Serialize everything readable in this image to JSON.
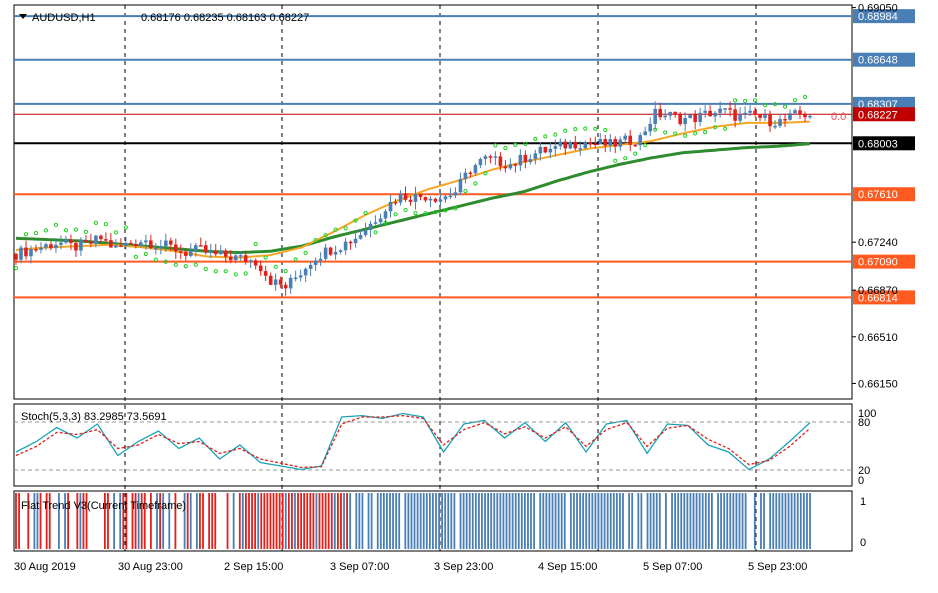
{
  "header": {
    "symbol": "AUDUSD,H1",
    "ohlc": "0.68176 0.68235 0.68163 0.68227"
  },
  "main_scale": {
    "ticks": [
      "0.69050",
      "0.67240",
      "0.66870",
      "0.66510",
      "0.66150"
    ],
    "zero_marker": "0.0"
  },
  "levels": [
    {
      "label": "0.68984",
      "price": 0.68984,
      "color": "#4a7fb5",
      "width": 2
    },
    {
      "label": "0.68648",
      "price": 0.68648,
      "color": "#4a7fb5",
      "width": 2
    },
    {
      "label": "0.68307",
      "price": 0.68307,
      "color": "#4a7fb5",
      "width": 2
    },
    {
      "label": "0.68227",
      "price": 0.68227,
      "color": "#c00000",
      "width": 1
    },
    {
      "label": "0.68003",
      "price": 0.68003,
      "color": "#000000",
      "width": 2
    },
    {
      "label": "0.67610",
      "price": 0.6761,
      "color": "#ff5a1f",
      "width": 2
    },
    {
      "label": "0.67090",
      "price": 0.6709,
      "color": "#ff5a1f",
      "width": 2
    },
    {
      "label": "0.66814",
      "price": 0.66814,
      "color": "#ff5a1f",
      "width": 2
    }
  ],
  "stoch": {
    "label": "Stoch(5,3,3) 83.2985 73.5691",
    "ticks": [
      "100",
      "80",
      "20",
      "0"
    ]
  },
  "flat_trend": {
    "label": "Flat Trend V3(Current Timeframe)",
    "ticks": [
      "1",
      "0"
    ]
  },
  "x_axis": {
    "labels": [
      "30 Aug 2019",
      "30 Aug 23:00",
      "2 Sep 15:00",
      "3 Sep 07:00",
      "3 Sep 23:00",
      "4 Sep 15:00",
      "5 Sep 07:00",
      "5 Sep 23:00"
    ]
  },
  "colors": {
    "bull": "#4a7fb5",
    "bear": "#e0201b",
    "ma_fast": "#f5a623",
    "ma_slow": "#2e8b2e",
    "sar": "#22cc22",
    "stoch_main": "#1aa3b8",
    "stoch_signal": "#e0201b"
  },
  "chart_data": {
    "type": "candlestick",
    "symbol": "AUDUSD",
    "timeframe": "H1",
    "ylim": [
      0.6603,
      0.6907
    ],
    "close_path": [
      0.6715,
      0.6718,
      0.6721,
      0.6724,
      0.672,
      0.6722,
      0.6727,
      0.6719,
      0.6723,
      0.6726,
      0.6722,
      0.672,
      0.6716,
      0.6718,
      0.6714,
      0.6713,
      0.6711,
      0.6709,
      0.6694,
      0.6689,
      0.67,
      0.6712,
      0.6718,
      0.6722,
      0.6728,
      0.6738,
      0.675,
      0.676,
      0.6759,
      0.676,
      0.6758,
      0.6763,
      0.678,
      0.6788,
      0.6786,
      0.6784,
      0.679,
      0.6794,
      0.6796,
      0.68,
      0.6801,
      0.68,
      0.6799,
      0.6802,
      0.6804,
      0.6823,
      0.6822,
      0.6819,
      0.682,
      0.6824,
      0.6825,
      0.682,
      0.6822,
      0.6818,
      0.6817,
      0.6822,
      0.6823
    ],
    "ma_fast_path": [
      0.6718,
      0.672,
      0.6721,
      0.6722,
      0.672,
      0.6717,
      0.6713,
      0.6712,
      0.6714,
      0.672,
      0.6732,
      0.6745,
      0.6756,
      0.6765,
      0.6772,
      0.678,
      0.6786,
      0.6791,
      0.6796,
      0.6799,
      0.6802,
      0.6808,
      0.6813,
      0.6816,
      0.6816,
      0.6817
    ],
    "ma_slow_path": [
      0.6727,
      0.6726,
      0.6725,
      0.6723,
      0.6721,
      0.6719,
      0.6717,
      0.6716,
      0.6717,
      0.6721,
      0.6728,
      0.6734,
      0.674,
      0.6746,
      0.6752,
      0.6758,
      0.6763,
      0.6771,
      0.6778,
      0.6784,
      0.6789,
      0.6793,
      0.6795,
      0.6797,
      0.6798,
      0.68
    ],
    "stoch_main_path": [
      40,
      55,
      75,
      60,
      80,
      35,
      55,
      70,
      45,
      60,
      30,
      50,
      25,
      20,
      15,
      20,
      90,
      92,
      88,
      95,
      90,
      40,
      80,
      85,
      60,
      82,
      55,
      82,
      40,
      80,
      85,
      38,
      80,
      78,
      50,
      40,
      15,
      30,
      55,
      82
    ],
    "stoch_signal_path": [
      35,
      48,
      68,
      65,
      72,
      45,
      50,
      65,
      52,
      55,
      38,
      45,
      30,
      24,
      18,
      19,
      80,
      90,
      90,
      92,
      88,
      50,
      72,
      82,
      66,
      76,
      60,
      76,
      48,
      72,
      82,
      48,
      74,
      78,
      58,
      45,
      22,
      28,
      48,
      74
    ]
  }
}
